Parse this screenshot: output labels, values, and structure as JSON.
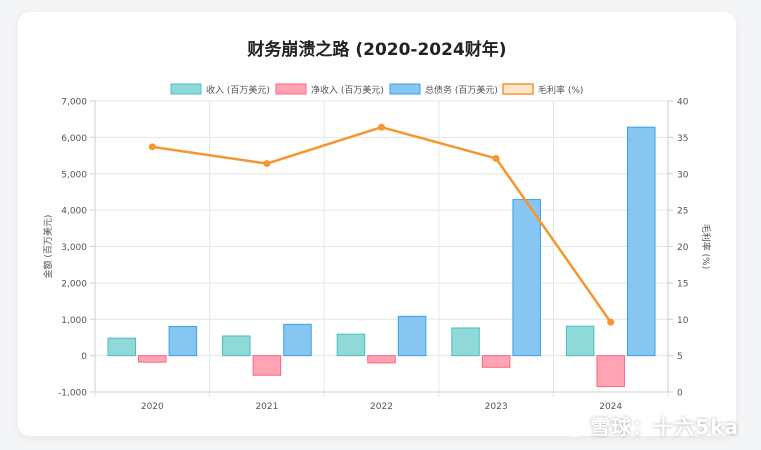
{
  "chart_data": {
    "type": "bar",
    "title": "财务崩溃之路 (2020-2024财年)",
    "categories": [
      "2020",
      "2021",
      "2022",
      "2023",
      "2024"
    ],
    "series": [
      {
        "name": "收入 (百万美元)",
        "type": "bar",
        "axis": "left",
        "color": "#8fd9d9",
        "border": "#4bbfbf",
        "values": [
          480,
          540,
          590,
          760,
          810
        ]
      },
      {
        "name": "净收入 (百万美元)",
        "type": "bar",
        "axis": "left",
        "color": "#ffa3b5",
        "border": "#ff6384",
        "values": [
          -180,
          -540,
          -200,
          -320,
          -850
        ]
      },
      {
        "name": "总债务 (百万美元)",
        "type": "bar",
        "axis": "left",
        "color": "#88c6f2",
        "border": "#36a2eb",
        "values": [
          800,
          860,
          1080,
          4290,
          6280
        ]
      },
      {
        "name": "毛利率 (%)",
        "type": "line",
        "axis": "right",
        "color": "#f5962f",
        "values": [
          33.7,
          31.4,
          36.4,
          32.1,
          9.6
        ]
      }
    ],
    "ylabel": "金额 (百万美元)",
    "y2label": "毛利率 (%)",
    "ylim": [
      -1000,
      7000
    ],
    "yticks": [
      "-1,000",
      "0",
      "1,000",
      "2,000",
      "3,000",
      "4,000",
      "5,000",
      "6,000",
      "7,000"
    ],
    "y2lim": [
      0,
      40
    ],
    "y2ticks": [
      "0",
      "5",
      "10",
      "15",
      "20",
      "25",
      "30",
      "35",
      "40"
    ],
    "grid": true,
    "legend": "top"
  },
  "watermark": "雪球：十六5ka"
}
